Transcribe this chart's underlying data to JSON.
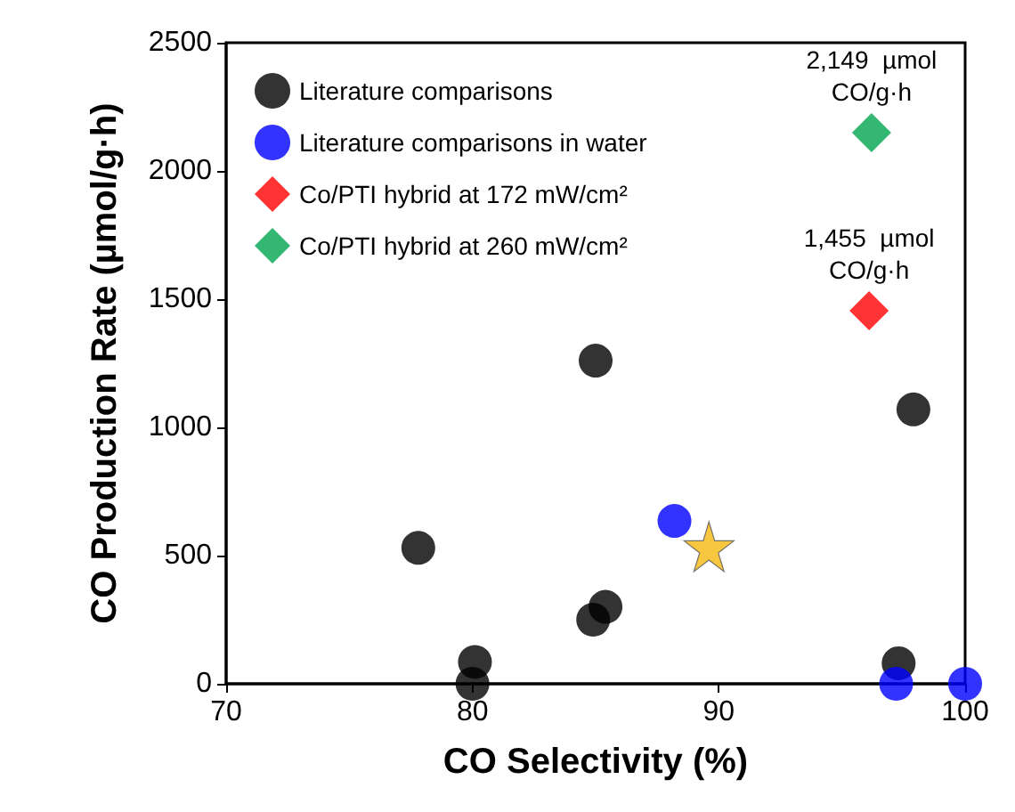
{
  "chart_data": {
    "type": "scatter",
    "xlabel": "CO Selectivity (%)",
    "ylabel": "CO Production Rate (µmol/g·h)",
    "xlim": [
      70,
      100
    ],
    "xticks": [
      70,
      80,
      90,
      100
    ],
    "ylim": [
      0,
      2500
    ],
    "yticks": [
      0,
      500,
      1000,
      1500,
      2000,
      2500
    ],
    "grid": false,
    "legend": "top left",
    "series": [
      {
        "name": "Literature comparisons",
        "color": "#000000",
        "marker": "circle",
        "x": [
          77.8,
          80.0,
          80.1,
          84.9,
          85.4,
          85.0,
          97.9,
          97.3
        ],
        "values": [
          530,
          0,
          85,
          250,
          300,
          1260,
          1070,
          80
        ]
      },
      {
        "name": "Literature comparisons in water",
        "color": "#0000ff",
        "marker": "circle",
        "x": [
          88.2,
          97.2,
          100
        ],
        "values": [
          635,
          0,
          0
        ]
      },
      {
        "name": "Co/PTI hybrid at 172 mW/cm²",
        "color": "#ff0000",
        "marker": "diamond",
        "x": [
          96.1
        ],
        "values": [
          1455
        ]
      },
      {
        "name": "Co/PTI hybrid at 260 mW/cm²",
        "color": "#00a550",
        "marker": "diamond",
        "x": [
          96.2
        ],
        "values": [
          2149
        ]
      },
      {
        "color": "#f5b90f",
        "marker": "star",
        "x": [
          89.6
        ],
        "values": [
          535
        ]
      }
    ],
    "annotations": [
      {
        "text": "2,149  µmol\nCO/g·h",
        "x": 96.2,
        "y": 2149
      },
      {
        "text": "1,455  µmol\nCO/g·h",
        "x": 96.1,
        "y": 1455
      }
    ]
  }
}
